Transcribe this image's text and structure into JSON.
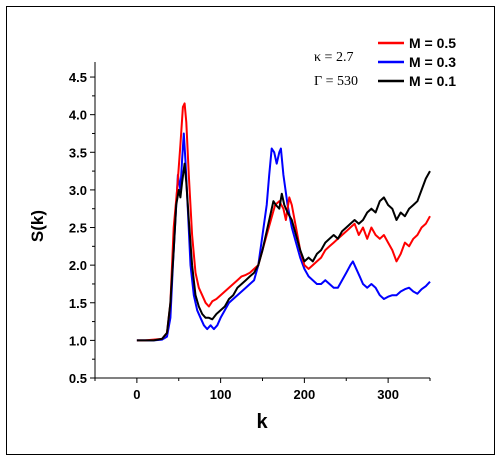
{
  "chart_data": {
    "type": "line",
    "xlabel": "k",
    "ylabel": "S(k)",
    "xlim": [
      -50,
      350
    ],
    "ylim": [
      0.5,
      4.7
    ],
    "x_ticks": [
      0,
      100,
      200,
      300
    ],
    "y_ticks": [
      0.5,
      1.0,
      1.5,
      2.0,
      2.5,
      3.0,
      3.5,
      4.0,
      4.5
    ],
    "y_tick_labels": [
      "0.5",
      "1.0",
      "1.5",
      "2.0",
      "2.5",
      "3.0",
      "3.5",
      "4.0",
      "4.5"
    ],
    "grid": false,
    "legend_position": "top-right",
    "annotations": [
      "κ = 2.7",
      "Γ = 530"
    ],
    "series": [
      {
        "name": "M = 0.5",
        "color": "#ff0000",
        "points": [
          [
            0,
            1.0
          ],
          [
            10,
            1.0
          ],
          [
            20,
            1.01
          ],
          [
            30,
            1.02
          ],
          [
            36,
            1.1
          ],
          [
            40,
            1.5
          ],
          [
            44,
            2.5
          ],
          [
            48,
            3.0
          ],
          [
            52,
            3.6
          ],
          [
            55,
            4.1
          ],
          [
            57,
            4.15
          ],
          [
            59,
            3.9
          ],
          [
            62,
            3.2
          ],
          [
            66,
            2.4
          ],
          [
            70,
            1.9
          ],
          [
            74,
            1.7
          ],
          [
            78,
            1.6
          ],
          [
            82,
            1.5
          ],
          [
            86,
            1.45
          ],
          [
            90,
            1.52
          ],
          [
            95,
            1.55
          ],
          [
            100,
            1.6
          ],
          [
            105,
            1.65
          ],
          [
            110,
            1.7
          ],
          [
            115,
            1.75
          ],
          [
            120,
            1.8
          ],
          [
            125,
            1.85
          ],
          [
            130,
            1.87
          ],
          [
            135,
            1.9
          ],
          [
            140,
            1.95
          ],
          [
            145,
            2.0
          ],
          [
            150,
            2.2
          ],
          [
            155,
            2.4
          ],
          [
            160,
            2.6
          ],
          [
            165,
            2.8
          ],
          [
            170,
            2.85
          ],
          [
            175,
            2.75
          ],
          [
            178,
            2.6
          ],
          [
            182,
            2.9
          ],
          [
            185,
            2.8
          ],
          [
            190,
            2.5
          ],
          [
            195,
            2.2
          ],
          [
            200,
            2.0
          ],
          [
            205,
            1.95
          ],
          [
            210,
            2.0
          ],
          [
            215,
            2.05
          ],
          [
            220,
            2.1
          ],
          [
            225,
            2.2
          ],
          [
            230,
            2.25
          ],
          [
            235,
            2.3
          ],
          [
            240,
            2.35
          ],
          [
            245,
            2.4
          ],
          [
            250,
            2.45
          ],
          [
            255,
            2.5
          ],
          [
            260,
            2.55
          ],
          [
            265,
            2.4
          ],
          [
            270,
            2.5
          ],
          [
            275,
            2.35
          ],
          [
            280,
            2.5
          ],
          [
            285,
            2.4
          ],
          [
            290,
            2.35
          ],
          [
            295,
            2.4
          ],
          [
            300,
            2.3
          ],
          [
            305,
            2.2
          ],
          [
            310,
            2.05
          ],
          [
            315,
            2.15
          ],
          [
            320,
            2.3
          ],
          [
            325,
            2.25
          ],
          [
            330,
            2.35
          ],
          [
            335,
            2.4
          ],
          [
            340,
            2.5
          ],
          [
            345,
            2.55
          ],
          [
            350,
            2.65
          ]
        ]
      },
      {
        "name": "M = 0.3",
        "color": "#0000ff",
        "points": [
          [
            0,
            1.0
          ],
          [
            10,
            1.0
          ],
          [
            20,
            1.0
          ],
          [
            30,
            1.01
          ],
          [
            36,
            1.05
          ],
          [
            40,
            1.3
          ],
          [
            43,
            2.0
          ],
          [
            46,
            2.6
          ],
          [
            49,
            3.2
          ],
          [
            52,
            3.0
          ],
          [
            54,
            3.4
          ],
          [
            56,
            3.75
          ],
          [
            58,
            3.4
          ],
          [
            61,
            2.7
          ],
          [
            64,
            2.0
          ],
          [
            68,
            1.6
          ],
          [
            72,
            1.4
          ],
          [
            76,
            1.3
          ],
          [
            80,
            1.2
          ],
          [
            84,
            1.15
          ],
          [
            88,
            1.2
          ],
          [
            92,
            1.15
          ],
          [
            96,
            1.2
          ],
          [
            100,
            1.3
          ],
          [
            105,
            1.4
          ],
          [
            110,
            1.5
          ],
          [
            115,
            1.55
          ],
          [
            120,
            1.6
          ],
          [
            125,
            1.65
          ],
          [
            130,
            1.7
          ],
          [
            135,
            1.75
          ],
          [
            140,
            1.8
          ],
          [
            145,
            2.0
          ],
          [
            150,
            2.4
          ],
          [
            155,
            2.8
          ],
          [
            158,
            3.2
          ],
          [
            161,
            3.55
          ],
          [
            164,
            3.5
          ],
          [
            167,
            3.35
          ],
          [
            170,
            3.5
          ],
          [
            172,
            3.55
          ],
          [
            175,
            3.2
          ],
          [
            180,
            2.8
          ],
          [
            185,
            2.5
          ],
          [
            190,
            2.3
          ],
          [
            195,
            2.1
          ],
          [
            200,
            1.95
          ],
          [
            205,
            1.85
          ],
          [
            210,
            1.8
          ],
          [
            215,
            1.75
          ],
          [
            220,
            1.75
          ],
          [
            225,
            1.8
          ],
          [
            230,
            1.75
          ],
          [
            235,
            1.7
          ],
          [
            240,
            1.7
          ],
          [
            245,
            1.8
          ],
          [
            250,
            1.9
          ],
          [
            255,
            2.0
          ],
          [
            258,
            2.05
          ],
          [
            262,
            1.95
          ],
          [
            266,
            1.85
          ],
          [
            270,
            1.75
          ],
          [
            275,
            1.7
          ],
          [
            280,
            1.75
          ],
          [
            285,
            1.7
          ],
          [
            290,
            1.6
          ],
          [
            295,
            1.55
          ],
          [
            300,
            1.58
          ],
          [
            305,
            1.6
          ],
          [
            310,
            1.6
          ],
          [
            315,
            1.65
          ],
          [
            320,
            1.68
          ],
          [
            325,
            1.7
          ],
          [
            330,
            1.65
          ],
          [
            335,
            1.62
          ],
          [
            340,
            1.68
          ],
          [
            345,
            1.72
          ],
          [
            350,
            1.78
          ]
        ]
      },
      {
        "name": "M = 0.1",
        "color": "#000000",
        "points": [
          [
            0,
            1.0
          ],
          [
            10,
            1.0
          ],
          [
            20,
            1.0
          ],
          [
            30,
            1.02
          ],
          [
            36,
            1.1
          ],
          [
            40,
            1.5
          ],
          [
            44,
            2.2
          ],
          [
            47,
            2.8
          ],
          [
            50,
            3.0
          ],
          [
            52,
            2.9
          ],
          [
            54,
            3.1
          ],
          [
            57,
            3.35
          ],
          [
            59,
            3.1
          ],
          [
            62,
            2.6
          ],
          [
            66,
            2.0
          ],
          [
            70,
            1.6
          ],
          [
            74,
            1.45
          ],
          [
            78,
            1.35
          ],
          [
            82,
            1.3
          ],
          [
            86,
            1.3
          ],
          [
            90,
            1.28
          ],
          [
            95,
            1.35
          ],
          [
            100,
            1.4
          ],
          [
            105,
            1.45
          ],
          [
            110,
            1.55
          ],
          [
            115,
            1.6
          ],
          [
            120,
            1.7
          ],
          [
            125,
            1.75
          ],
          [
            130,
            1.8
          ],
          [
            135,
            1.85
          ],
          [
            140,
            1.9
          ],
          [
            145,
            2.0
          ],
          [
            150,
            2.2
          ],
          [
            155,
            2.45
          ],
          [
            160,
            2.7
          ],
          [
            163,
            2.85
          ],
          [
            166,
            2.8
          ],
          [
            170,
            2.75
          ],
          [
            173,
            2.95
          ],
          [
            176,
            2.8
          ],
          [
            180,
            2.7
          ],
          [
            185,
            2.6
          ],
          [
            190,
            2.4
          ],
          [
            195,
            2.2
          ],
          [
            200,
            2.05
          ],
          [
            205,
            2.1
          ],
          [
            210,
            2.05
          ],
          [
            215,
            2.15
          ],
          [
            220,
            2.2
          ],
          [
            225,
            2.3
          ],
          [
            230,
            2.35
          ],
          [
            235,
            2.4
          ],
          [
            240,
            2.35
          ],
          [
            245,
            2.45
          ],
          [
            250,
            2.5
          ],
          [
            255,
            2.55
          ],
          [
            260,
            2.6
          ],
          [
            265,
            2.55
          ],
          [
            270,
            2.6
          ],
          [
            275,
            2.7
          ],
          [
            280,
            2.75
          ],
          [
            285,
            2.7
          ],
          [
            290,
            2.85
          ],
          [
            295,
            2.9
          ],
          [
            300,
            2.8
          ],
          [
            305,
            2.75
          ],
          [
            310,
            2.6
          ],
          [
            315,
            2.7
          ],
          [
            320,
            2.65
          ],
          [
            325,
            2.75
          ],
          [
            330,
            2.8
          ],
          [
            335,
            2.85
          ],
          [
            340,
            3.0
          ],
          [
            345,
            3.15
          ],
          [
            350,
            3.25
          ]
        ]
      }
    ]
  }
}
